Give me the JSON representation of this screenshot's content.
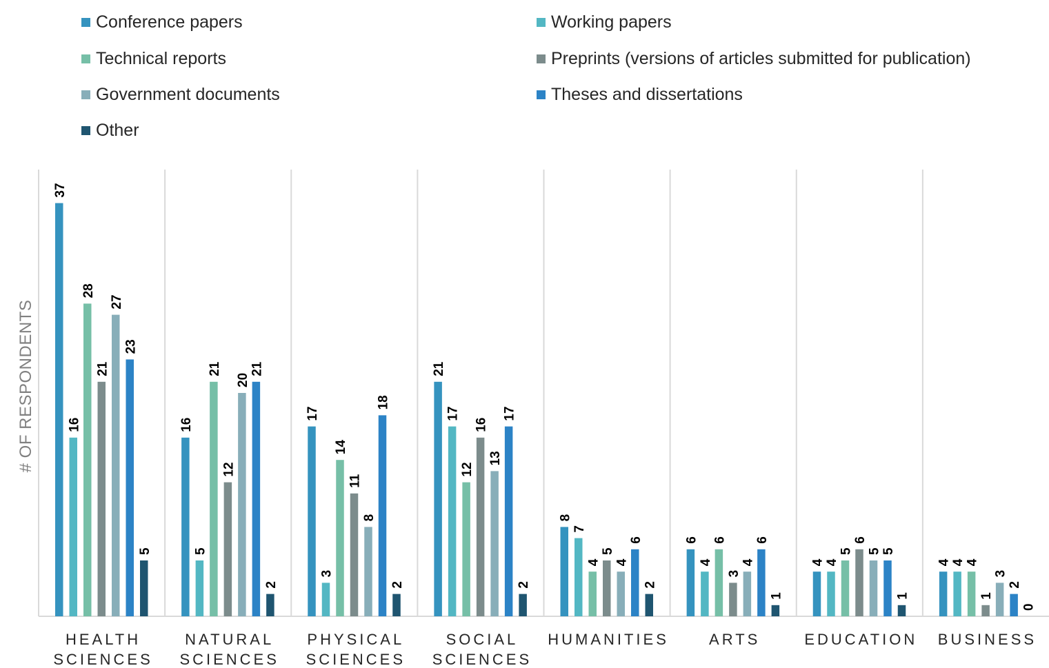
{
  "chart_data": {
    "type": "bar",
    "title": "",
    "xlabel": "",
    "ylabel": "# OF RESPONDENTS",
    "ylim": [
      0,
      40
    ],
    "grid": false,
    "legend_position": "top",
    "categories": [
      [
        "HEALTH",
        "SCIENCES"
      ],
      [
        "NATURAL",
        "SCIENCES"
      ],
      [
        "PHYSICAL",
        "SCIENCES"
      ],
      [
        "SOCIAL",
        "SCIENCES"
      ],
      [
        "HUMANITIES"
      ],
      [
        "ARTS"
      ],
      [
        "EDUCATION"
      ],
      [
        "BUSINESS"
      ]
    ],
    "series": [
      {
        "name": "Conference papers",
        "color": "#3593BF",
        "values": [
          37,
          16,
          17,
          21,
          8,
          6,
          4,
          4
        ]
      },
      {
        "name": "Working papers",
        "color": "#53B7C3",
        "values": [
          16,
          5,
          3,
          17,
          7,
          4,
          4,
          4
        ]
      },
      {
        "name": "Technical reports",
        "color": "#76BFA7",
        "values": [
          28,
          21,
          14,
          12,
          4,
          6,
          5,
          4
        ]
      },
      {
        "name": "Preprints (versions of articles submitted for publication)",
        "color": "#7C8C8C",
        "values": [
          21,
          12,
          11,
          16,
          5,
          3,
          6,
          1
        ]
      },
      {
        "name": "Government documents",
        "color": "#88AEB9",
        "values": [
          27,
          20,
          8,
          13,
          4,
          4,
          5,
          3
        ]
      },
      {
        "name": "Theses and dissertations",
        "color": "#2C83C6",
        "values": [
          23,
          21,
          18,
          17,
          6,
          6,
          5,
          2
        ]
      },
      {
        "name": "Other",
        "color": "#1F5570",
        "values": [
          5,
          2,
          2,
          2,
          2,
          1,
          1,
          0
        ]
      }
    ]
  }
}
